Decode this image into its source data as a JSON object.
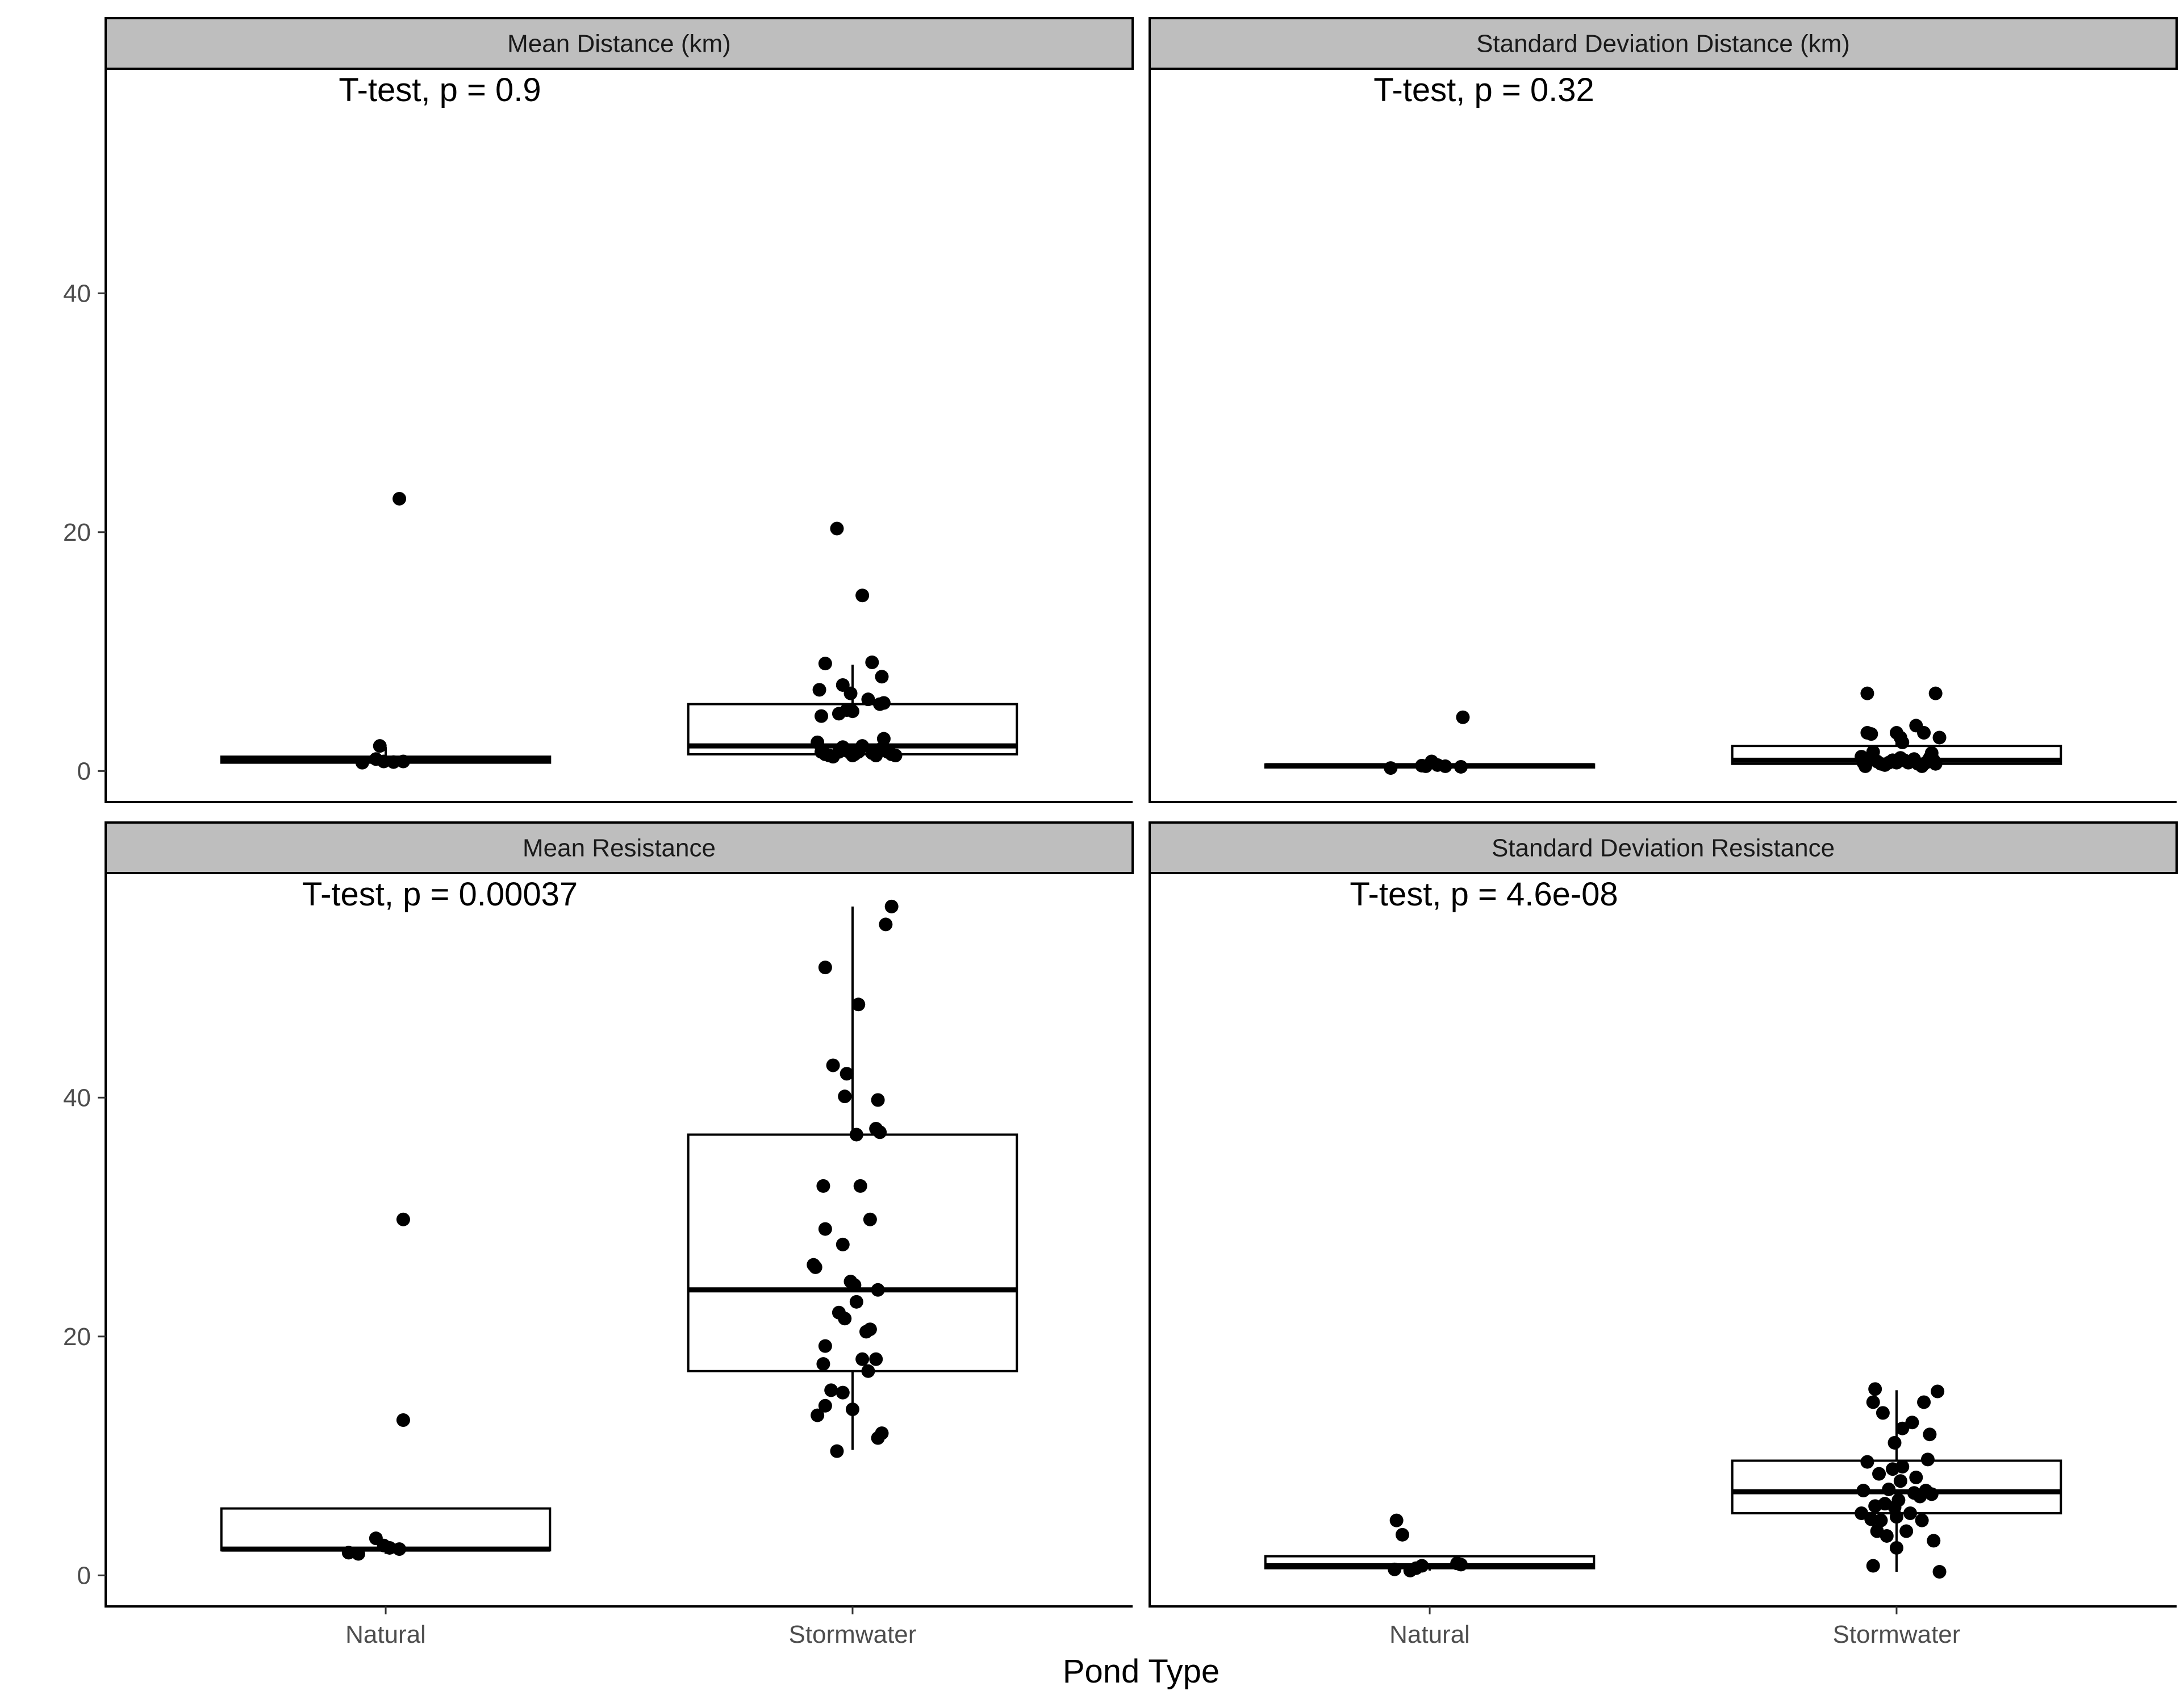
{
  "chart_data": {
    "type": "box",
    "xlabel": "Pond Type",
    "ylabel": "",
    "ylim": [
      -2.6,
      58.8
    ],
    "y_ticks": [
      0,
      20,
      40
    ],
    "categories": [
      "Natural",
      "Stormwater"
    ],
    "facet_layout": "2x2",
    "y_axis_shared": true,
    "grid": false,
    "colors": {
      "strip_fill": "#bebebe",
      "strip_border": "#000000",
      "box_fill": "#ffffff",
      "line": "#000000",
      "point": "#000000"
    },
    "panels": [
      {
        "title": "Mean Distance (km)",
        "annotation": "T-test, p = 0.9",
        "groups": [
          {
            "category": "Natural",
            "q1": 0.7,
            "median": 0.9,
            "q3": 1.2,
            "whisker_low": 0.6,
            "whisker_high": 2.0,
            "points": [
              [
                0.88,
                0.7
              ],
              [
                0.95,
                1.0
              ],
              [
                0.97,
                2.1
              ],
              [
                0.99,
                0.8
              ],
              [
                1.04,
                0.75
              ],
              [
                1.09,
                0.8
              ],
              [
                1.07,
                22.8
              ]
            ]
          },
          {
            "category": "Stormwater",
            "q1": 1.4,
            "median": 2.1,
            "q3": 5.6,
            "whisker_low": 1.0,
            "whisker_high": 8.9,
            "points": [
              [
                0.82,
                2.4
              ],
              [
                0.84,
                1.6
              ],
              [
                0.86,
                1.4
              ],
              [
                0.88,
                1.3
              ],
              [
                0.9,
                1.2
              ],
              [
                0.95,
                2.0
              ],
              [
                0.97,
                1.7
              ],
              [
                0.99,
                1.5
              ],
              [
                0.93,
                1.6
              ],
              [
                1.0,
                1.3
              ],
              [
                1.01,
                1.4
              ],
              [
                1.03,
                1.6
              ],
              [
                1.05,
                2.1
              ],
              [
                1.1,
                1.5
              ],
              [
                1.12,
                1.3
              ],
              [
                1.14,
                1.8
              ],
              [
                1.16,
                2.7
              ],
              [
                1.18,
                1.6
              ],
              [
                1.2,
                1.4
              ],
              [
                1.22,
                1.3
              ],
              [
                0.83,
                6.8
              ],
              [
                0.84,
                4.6
              ],
              [
                0.86,
                9.0
              ],
              [
                0.93,
                4.8
              ],
              [
                0.95,
                7.2
              ],
              [
                0.97,
                5.1
              ],
              [
                0.99,
                6.5
              ],
              [
                1.0,
                5.0
              ],
              [
                1.08,
                6.0
              ],
              [
                1.1,
                9.1
              ],
              [
                1.14,
                5.6
              ],
              [
                1.15,
                7.9
              ],
              [
                1.16,
                5.7
              ],
              [
                0.92,
                20.3
              ],
              [
                1.05,
                14.7
              ]
            ]
          }
        ]
      },
      {
        "title": "Standard Deviation Distance (km)",
        "annotation": "T-test, p = 0.32",
        "groups": [
          {
            "category": "Natural",
            "q1": 0.3,
            "median": 0.45,
            "q3": 0.55,
            "whisker_low": 0.2,
            "whisker_high": 0.9,
            "points": [
              [
                0.8,
                0.25
              ],
              [
                0.96,
                0.45
              ],
              [
                0.98,
                0.4
              ],
              [
                1.01,
                0.8
              ],
              [
                1.04,
                0.5
              ],
              [
                1.08,
                0.4
              ],
              [
                1.16,
                0.35
              ],
              [
                1.17,
                4.5
              ]
            ]
          },
          {
            "category": "Stormwater",
            "q1": 0.6,
            "median": 0.9,
            "q3": 2.1,
            "whisker_low": 0.3,
            "whisker_high": 3.6,
            "points": [
              [
                0.82,
                1.2
              ],
              [
                0.83,
                0.7
              ],
              [
                0.84,
                0.4
              ],
              [
                0.86,
                1.0
              ],
              [
                0.88,
                1.6
              ],
              [
                0.9,
                0.8
              ],
              [
                0.92,
                0.6
              ],
              [
                0.94,
                0.5
              ],
              [
                0.96,
                0.7
              ],
              [
                0.98,
                0.9
              ],
              [
                1.0,
                0.7
              ],
              [
                1.02,
                1.1
              ],
              [
                1.04,
                0.9
              ],
              [
                1.06,
                0.7
              ],
              [
                1.09,
                1.0
              ],
              [
                1.11,
                0.6
              ],
              [
                1.13,
                0.4
              ],
              [
                1.15,
                0.7
              ],
              [
                1.17,
                1.1
              ],
              [
                1.19,
                0.9
              ],
              [
                1.2,
                0.6
              ],
              [
                0.85,
                3.2
              ],
              [
                0.87,
                3.1
              ],
              [
                1.0,
                3.2
              ],
              [
                1.02,
                2.8
              ],
              [
                1.03,
                2.4
              ],
              [
                1.1,
                3.8
              ],
              [
                1.14,
                3.2
              ],
              [
                1.18,
                1.5
              ],
              [
                1.22,
                2.8
              ],
              [
                1.19,
                0.8
              ],
              [
                0.85,
                6.5
              ],
              [
                1.2,
                6.5
              ]
            ]
          }
        ]
      },
      {
        "title": "Mean Resistance",
        "annotation": "T-test, p = 0.00037",
        "groups": [
          {
            "category": "Natural",
            "q1": 2.1,
            "median": 2.2,
            "q3": 5.6,
            "whisker_low": 1.8,
            "whisker_high": 5.6,
            "points": [
              [
                0.81,
                1.9
              ],
              [
                0.86,
                1.8
              ],
              [
                0.95,
                3.1
              ],
              [
                0.99,
                2.5
              ],
              [
                1.02,
                2.3
              ],
              [
                1.07,
                2.2
              ],
              [
                1.09,
                13.0
              ],
              [
                1.09,
                29.8
              ]
            ]
          },
          {
            "category": "Stormwater",
            "q1": 17.1,
            "median": 23.9,
            "q3": 36.9,
            "whisker_low": 10.5,
            "whisker_high": 56.0,
            "points": [
              [
                0.82,
                13.4
              ],
              [
                0.86,
                14.2
              ],
              [
                0.89,
                15.5
              ],
              [
                0.92,
                10.4
              ],
              [
                0.95,
                15.3
              ],
              [
                1.0,
                13.9
              ],
              [
                1.08,
                17.1
              ],
              [
                1.12,
                18.1
              ],
              [
                1.13,
                11.5
              ],
              [
                1.15,
                11.9
              ],
              [
                0.85,
                17.7
              ],
              [
                0.86,
                19.2
              ],
              [
                0.93,
                22.0
              ],
              [
                0.96,
                21.5
              ],
              [
                0.99,
                24.6
              ],
              [
                1.01,
                24.3
              ],
              [
                1.02,
                22.9
              ],
              [
                1.05,
                18.1
              ],
              [
                1.07,
                20.4
              ],
              [
                1.09,
                20.6
              ],
              [
                1.13,
                23.9
              ],
              [
                0.8,
                26.0
              ],
              [
                0.81,
                25.8
              ],
              [
                0.86,
                29.0
              ],
              [
                0.95,
                27.7
              ],
              [
                1.04,
                32.6
              ],
              [
                1.09,
                29.8
              ],
              [
                0.85,
                32.6
              ],
              [
                0.9,
                42.7
              ],
              [
                0.96,
                40.1
              ],
              [
                0.97,
                42.0
              ],
              [
                1.02,
                36.9
              ],
              [
                1.12,
                37.4
              ],
              [
                1.14,
                37.1
              ],
              [
                1.13,
                39.8
              ],
              [
                1.03,
                47.8
              ],
              [
                0.86,
                50.9
              ],
              [
                1.17,
                54.5
              ],
              [
                1.2,
                56.0
              ]
            ]
          }
        ]
      },
      {
        "title": "Standard Deviation Resistance",
        "annotation": "T-test, p = 4.6e-08",
        "groups": [
          {
            "category": "Natural",
            "q1": 0.6,
            "median": 0.8,
            "q3": 1.6,
            "whisker_low": 0.4,
            "whisker_high": 1.6,
            "points": [
              [
                0.82,
                0.5
              ],
              [
                0.9,
                0.4
              ],
              [
                0.93,
                0.6
              ],
              [
                0.96,
                0.8
              ],
              [
                1.14,
                1.0
              ],
              [
                1.16,
                0.9
              ],
              [
                0.86,
                3.4
              ],
              [
                0.83,
                4.6
              ]
            ]
          },
          {
            "category": "Stormwater",
            "q1": 5.2,
            "median": 7.0,
            "q3": 9.6,
            "whisker_low": 0.3,
            "whisker_high": 15.5,
            "points": [
              [
                0.82,
                5.2
              ],
              [
                0.83,
                7.1
              ],
              [
                0.85,
                9.5
              ],
              [
                0.87,
                4.7
              ],
              [
                0.89,
                5.8
              ],
              [
                0.9,
                3.7
              ],
              [
                0.91,
                8.5
              ],
              [
                0.92,
                4.6
              ],
              [
                0.94,
                6.0
              ],
              [
                0.95,
                3.3
              ],
              [
                0.96,
                7.2
              ],
              [
                0.98,
                8.9
              ],
              [
                0.99,
                5.7
              ],
              [
                1.0,
                4.9
              ],
              [
                1.01,
                6.3
              ],
              [
                1.02,
                7.9
              ],
              [
                1.03,
                9.1
              ],
              [
                1.05,
                3.7
              ],
              [
                1.07,
                5.2
              ],
              [
                1.09,
                6.9
              ],
              [
                1.1,
                8.2
              ],
              [
                1.12,
                6.6
              ],
              [
                1.13,
                4.6
              ],
              [
                1.15,
                7.1
              ],
              [
                1.16,
                9.7
              ],
              [
                1.18,
                6.8
              ],
              [
                1.19,
                2.9
              ],
              [
                0.88,
                14.5
              ],
              [
                0.93,
                13.6
              ],
              [
                0.99,
                11.1
              ],
              [
                1.03,
                12.3
              ],
              [
                1.08,
                12.8
              ],
              [
                1.14,
                14.5
              ],
              [
                1.17,
                11.8
              ],
              [
                0.89,
                15.6
              ],
              [
                1.21,
                15.4
              ],
              [
                0.88,
                0.8
              ],
              [
                1.0,
                2.3
              ],
              [
                1.22,
                0.3
              ]
            ]
          }
        ]
      }
    ]
  }
}
